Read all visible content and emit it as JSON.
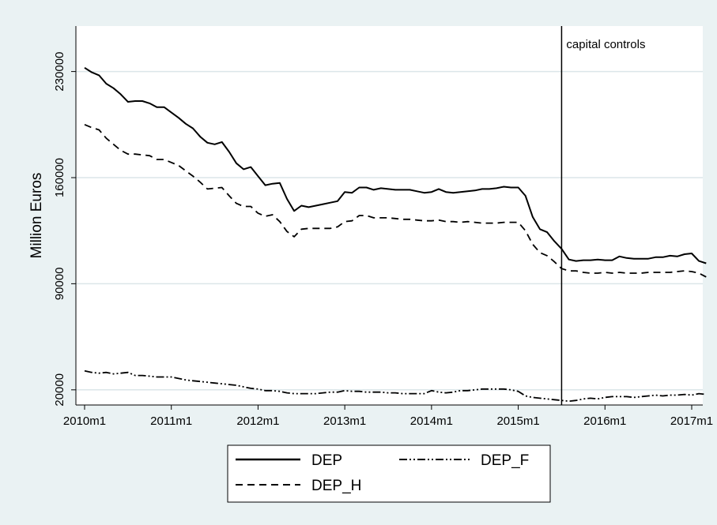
{
  "chart_data": {
    "type": "line",
    "title": "",
    "xlabel": "",
    "ylabel": "Million Euros",
    "xlim": [
      "2010m1",
      "2017m1"
    ],
    "ylim": [
      10000,
      260000
    ],
    "x_ticks": [
      "2010m1",
      "2011m1",
      "2012m1",
      "2013m1",
      "2014m1",
      "2015m1",
      "2016m1",
      "2017m1"
    ],
    "y_ticks": [
      20000,
      90000,
      160000,
      230000
    ],
    "y_tick_labels": [
      "20000",
      "90000",
      "160000",
      "230000"
    ],
    "grid": "horizontal",
    "legend_position": "bottom",
    "annotations": [
      {
        "x": "2015m7",
        "type": "vertical-line",
        "label": "capital controls"
      }
    ],
    "series": [
      {
        "name": "DEP",
        "dash": "solid",
        "color": "#000000",
        "points": [
          [
            "2010m1",
            232500
          ],
          [
            "2010m2",
            229500
          ],
          [
            "2010m3",
            227500
          ],
          [
            "2010m4",
            222000
          ],
          [
            "2010m5",
            219000
          ],
          [
            "2010m6",
            215000
          ],
          [
            "2010m7",
            210000
          ],
          [
            "2010m8",
            210500
          ],
          [
            "2010m9",
            210500
          ],
          [
            "2010m10",
            209000
          ],
          [
            "2010m11",
            206500
          ],
          [
            "2010m12",
            206500
          ],
          [
            "2011m1",
            203000
          ],
          [
            "2011m2",
            199500
          ],
          [
            "2011m3",
            195500
          ],
          [
            "2011m4",
            192500
          ],
          [
            "2011m5",
            187000
          ],
          [
            "2011m6",
            183000
          ],
          [
            "2011m7",
            182000
          ],
          [
            "2011m8",
            183500
          ],
          [
            "2011m9",
            177000
          ],
          [
            "2011m10",
            169500
          ],
          [
            "2011m11",
            165500
          ],
          [
            "2011m12",
            167000
          ],
          [
            "2012m1",
            161000
          ],
          [
            "2012m2",
            155000
          ],
          [
            "2012m3",
            156000
          ],
          [
            "2012m4",
            156500
          ],
          [
            "2012m5",
            146000
          ],
          [
            "2012m6",
            138000
          ],
          [
            "2012m7",
            141500
          ],
          [
            "2012m8",
            140500
          ],
          [
            "2012m9",
            141500
          ],
          [
            "2012m10",
            142500
          ],
          [
            "2012m11",
            143500
          ],
          [
            "2012m12",
            144500
          ],
          [
            "2013m1",
            150500
          ],
          [
            "2013m2",
            150000
          ],
          [
            "2013m3",
            153500
          ],
          [
            "2013m4",
            153500
          ],
          [
            "2013m5",
            152000
          ],
          [
            "2013m6",
            153000
          ],
          [
            "2013m7",
            152500
          ],
          [
            "2013m8",
            152000
          ],
          [
            "2013m9",
            152000
          ],
          [
            "2013m10",
            152000
          ],
          [
            "2013m11",
            151000
          ],
          [
            "2013m12",
            150000
          ],
          [
            "2014m1",
            150500
          ],
          [
            "2014m2",
            152500
          ],
          [
            "2014m3",
            150500
          ],
          [
            "2014m4",
            150000
          ],
          [
            "2014m5",
            150500
          ],
          [
            "2014m6",
            151000
          ],
          [
            "2014m7",
            151500
          ],
          [
            "2014m8",
            152500
          ],
          [
            "2014m9",
            152500
          ],
          [
            "2014m10",
            153000
          ],
          [
            "2014m11",
            154000
          ],
          [
            "2014m12",
            153500
          ],
          [
            "2015m1",
            153500
          ],
          [
            "2015m2",
            148000
          ],
          [
            "2015m3",
            134000
          ],
          [
            "2015m4",
            126000
          ],
          [
            "2015m5",
            124000
          ],
          [
            "2015m6",
            118000
          ],
          [
            "2015m7",
            113000
          ],
          [
            "2015m8",
            106000
          ],
          [
            "2015m9",
            105000
          ],
          [
            "2015m10",
            105500
          ],
          [
            "2015m11",
            105500
          ],
          [
            "2015m12",
            106000
          ],
          [
            "2016m1",
            105500
          ],
          [
            "2016m2",
            105500
          ],
          [
            "2016m3",
            108000
          ],
          [
            "2016m4",
            107000
          ],
          [
            "2016m5",
            106500
          ],
          [
            "2016m6",
            106500
          ],
          [
            "2016m7",
            106500
          ],
          [
            "2016m8",
            107500
          ],
          [
            "2016m9",
            107500
          ],
          [
            "2016m10",
            108500
          ],
          [
            "2016m11",
            108000
          ],
          [
            "2016m12",
            109500
          ],
          [
            "2017m1",
            110000
          ],
          [
            "2017m2",
            105000
          ],
          [
            "2017m3",
            103500
          ]
        ]
      },
      {
        "name": "DEP_H",
        "dash": "dashed",
        "color": "#000000",
        "points": [
          [
            "2010m1",
            195000
          ],
          [
            "2010m2",
            193000
          ],
          [
            "2010m3",
            191500
          ],
          [
            "2010m4",
            186000
          ],
          [
            "2010m5",
            182000
          ],
          [
            "2010m6",
            178000
          ],
          [
            "2010m7",
            175500
          ],
          [
            "2010m8",
            175500
          ],
          [
            "2010m9",
            175000
          ],
          [
            "2010m10",
            174500
          ],
          [
            "2010m11",
            172000
          ],
          [
            "2010m12",
            172000
          ],
          [
            "2011m1",
            170000
          ],
          [
            "2011m2",
            168000
          ],
          [
            "2011m3",
            164500
          ],
          [
            "2011m4",
            161000
          ],
          [
            "2011m5",
            157000
          ],
          [
            "2011m6",
            152500
          ],
          [
            "2011m7",
            153000
          ],
          [
            "2011m8",
            153500
          ],
          [
            "2011m9",
            148000
          ],
          [
            "2011m10",
            143000
          ],
          [
            "2011m11",
            141000
          ],
          [
            "2011m12",
            141000
          ],
          [
            "2012m1",
            136500
          ],
          [
            "2012m2",
            134500
          ],
          [
            "2012m3",
            135500
          ],
          [
            "2012m4",
            131000
          ],
          [
            "2012m5",
            124500
          ],
          [
            "2012m6",
            121000
          ],
          [
            "2012m7",
            126000
          ],
          [
            "2012m8",
            126500
          ],
          [
            "2012m9",
            126500
          ],
          [
            "2012m10",
            126500
          ],
          [
            "2012m11",
            126500
          ],
          [
            "2012m12",
            127500
          ],
          [
            "2013m1",
            131000
          ],
          [
            "2013m2",
            131500
          ],
          [
            "2013m3",
            135000
          ],
          [
            "2013m4",
            135000
          ],
          [
            "2013m5",
            133500
          ],
          [
            "2013m6",
            133500
          ],
          [
            "2013m7",
            133500
          ],
          [
            "2013m8",
            133000
          ],
          [
            "2013m9",
            132500
          ],
          [
            "2013m10",
            132500
          ],
          [
            "2013m11",
            132000
          ],
          [
            "2013m12",
            131500
          ],
          [
            "2014m1",
            131500
          ],
          [
            "2014m2",
            132000
          ],
          [
            "2014m3",
            131000
          ],
          [
            "2014m4",
            131000
          ],
          [
            "2014m5",
            130500
          ],
          [
            "2014m6",
            131000
          ],
          [
            "2014m7",
            130500
          ],
          [
            "2014m8",
            130000
          ],
          [
            "2014m9",
            130000
          ],
          [
            "2014m10",
            130000
          ],
          [
            "2014m11",
            130500
          ],
          [
            "2014m12",
            130500
          ],
          [
            "2015m1",
            130500
          ],
          [
            "2015m2",
            125000
          ],
          [
            "2015m3",
            116000
          ],
          [
            "2015m4",
            110500
          ],
          [
            "2015m5",
            108500
          ],
          [
            "2015m6",
            104500
          ],
          [
            "2015m7",
            100000
          ],
          [
            "2015m8",
            98500
          ],
          [
            "2015m9",
            98500
          ],
          [
            "2015m10",
            97500
          ],
          [
            "2015m11",
            97000
          ],
          [
            "2015m12",
            97000
          ],
          [
            "2016m1",
            97500
          ],
          [
            "2016m2",
            97000
          ],
          [
            "2016m3",
            97500
          ],
          [
            "2016m4",
            97000
          ],
          [
            "2016m5",
            97000
          ],
          [
            "2016m6",
            97000
          ],
          [
            "2016m7",
            97500
          ],
          [
            "2016m8",
            97500
          ],
          [
            "2016m9",
            97500
          ],
          [
            "2016m10",
            97500
          ],
          [
            "2016m11",
            98000
          ],
          [
            "2016m12",
            98500
          ],
          [
            "2017m1",
            98000
          ],
          [
            "2017m2",
            97000
          ],
          [
            "2017m3",
            94500
          ]
        ]
      },
      {
        "name": "DEP_F",
        "dash": "dash-dot-dot",
        "color": "#000000",
        "points": [
          [
            "2010m1",
            32500
          ],
          [
            "2010m2",
            31500
          ],
          [
            "2010m3",
            31000
          ],
          [
            "2010m4",
            31500
          ],
          [
            "2010m5",
            30500
          ],
          [
            "2010m6",
            31000
          ],
          [
            "2010m7",
            31500
          ],
          [
            "2010m8",
            29500
          ],
          [
            "2010m9",
            29500
          ],
          [
            "2010m10",
            29000
          ],
          [
            "2010m11",
            28500
          ],
          [
            "2010m12",
            28500
          ],
          [
            "2011m1",
            28500
          ],
          [
            "2011m2",
            27500
          ],
          [
            "2011m3",
            26500
          ],
          [
            "2011m4",
            26000
          ],
          [
            "2011m5",
            25500
          ],
          [
            "2011m6",
            25000
          ],
          [
            "2011m7",
            24500
          ],
          [
            "2011m8",
            24000
          ],
          [
            "2011m9",
            23500
          ],
          [
            "2011m10",
            23000
          ],
          [
            "2011m11",
            22000
          ],
          [
            "2011m12",
            21000
          ],
          [
            "2012m1",
            20500
          ],
          [
            "2012m2",
            19500
          ],
          [
            "2012m3",
            19500
          ],
          [
            "2012m4",
            19000
          ],
          [
            "2012m5",
            18000
          ],
          [
            "2012m6",
            17500
          ],
          [
            "2012m7",
            17500
          ],
          [
            "2012m8",
            17500
          ],
          [
            "2012m9",
            17500
          ],
          [
            "2012m10",
            18000
          ],
          [
            "2012m11",
            18500
          ],
          [
            "2012m12",
            18500
          ],
          [
            "2013m1",
            19500
          ],
          [
            "2013m2",
            19000
          ],
          [
            "2013m3",
            19000
          ],
          [
            "2013m4",
            18500
          ],
          [
            "2013m5",
            18500
          ],
          [
            "2013m6",
            18500
          ],
          [
            "2013m7",
            18000
          ],
          [
            "2013m8",
            18000
          ],
          [
            "2013m9",
            17500
          ],
          [
            "2013m10",
            17500
          ],
          [
            "2013m11",
            17500
          ],
          [
            "2013m12",
            17500
          ],
          [
            "2014m1",
            19500
          ],
          [
            "2014m2",
            18500
          ],
          [
            "2014m3",
            18000
          ],
          [
            "2014m4",
            18500
          ],
          [
            "2014m5",
            19500
          ],
          [
            "2014m6",
            19500
          ],
          [
            "2014m7",
            20000
          ],
          [
            "2014m8",
            20500
          ],
          [
            "2014m9",
            20500
          ],
          [
            "2014m10",
            20500
          ],
          [
            "2014m11",
            20500
          ],
          [
            "2014m12",
            20000
          ],
          [
            "2015m1",
            19000
          ],
          [
            "2015m2",
            16000
          ],
          [
            "2015m3",
            15000
          ],
          [
            "2015m4",
            14500
          ],
          [
            "2015m5",
            14000
          ],
          [
            "2015m6",
            13500
          ],
          [
            "2015m7",
            13000
          ],
          [
            "2015m8",
            12500
          ],
          [
            "2015m9",
            13000
          ],
          [
            "2015m10",
            14000
          ],
          [
            "2015m11",
            14500
          ],
          [
            "2015m12",
            14000
          ],
          [
            "2016m1",
            15000
          ],
          [
            "2016m2",
            15500
          ],
          [
            "2016m3",
            15500
          ],
          [
            "2016m4",
            15500
          ],
          [
            "2016m5",
            15000
          ],
          [
            "2016m6",
            15500
          ],
          [
            "2016m7",
            16000
          ],
          [
            "2016m8",
            16500
          ],
          [
            "2016m9",
            16000
          ],
          [
            "2016m10",
            16500
          ],
          [
            "2016m11",
            16500
          ],
          [
            "2016m12",
            17000
          ],
          [
            "2017m1",
            16500
          ],
          [
            "2017m2",
            17500
          ],
          [
            "2017m3",
            17000
          ]
        ]
      }
    ]
  },
  "legend": {
    "items": [
      "DEP",
      "DEP_F",
      "DEP_H"
    ]
  }
}
